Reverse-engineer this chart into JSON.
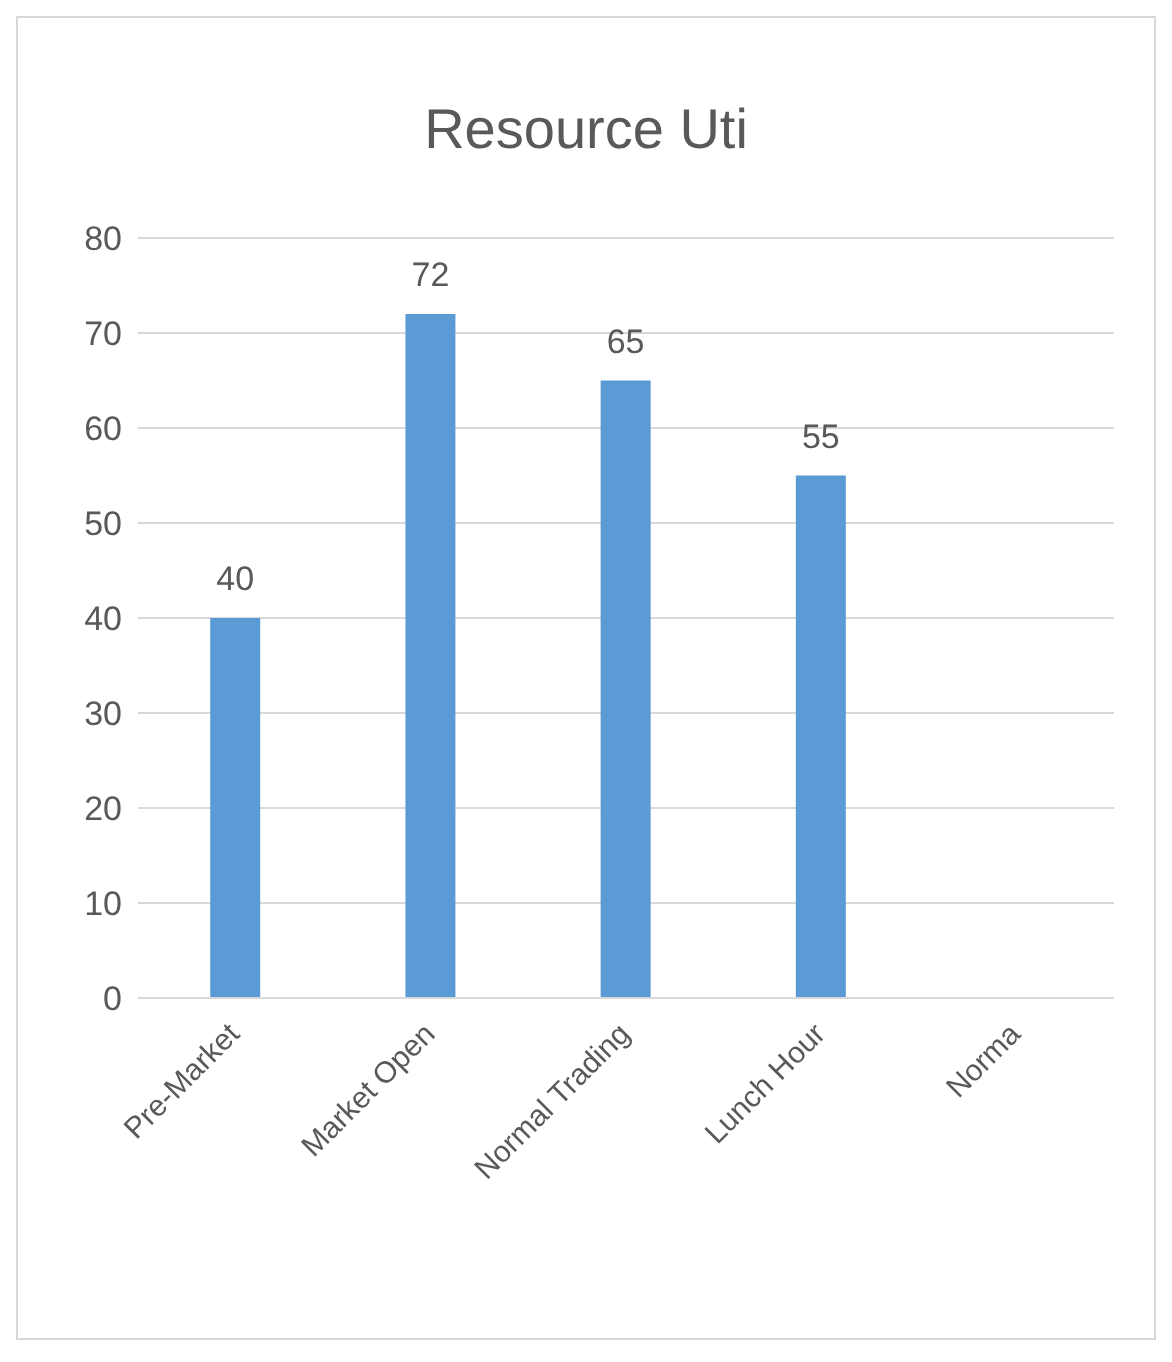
{
  "chart_data": {
    "type": "bar",
    "title": "Resource Uti",
    "categories": [
      "Pre-Market",
      "Market Open",
      "Normal Trading",
      "Lunch Hour",
      "Norma"
    ],
    "values": [
      40,
      72,
      65,
      55,
      null
    ],
    "color": "#5b9bd5",
    "ylim": [
      0,
      80
    ],
    "yticks": [
      0,
      10,
      20,
      30,
      40,
      50,
      60,
      70,
      80
    ],
    "grid": "y",
    "data_labels": true
  }
}
